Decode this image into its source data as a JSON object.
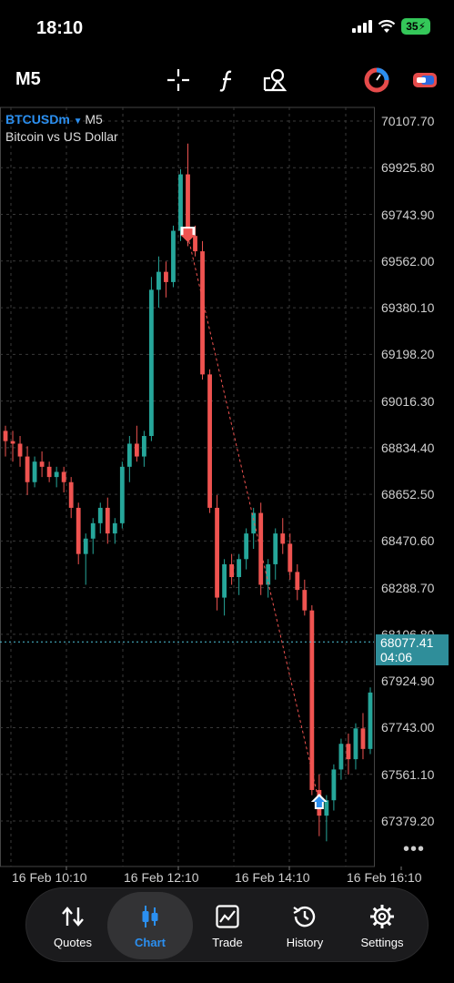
{
  "status_bar": {
    "time": "18:10",
    "battery": "35",
    "icons": [
      "signal-icon",
      "wifi-icon",
      "battery-charging-icon"
    ]
  },
  "toolbar": {
    "timeframe": "M5",
    "icons": [
      "crosshair-icon",
      "indicators-icon",
      "objects-icon",
      "chart-type-icon",
      "broker-icon"
    ]
  },
  "chart_info": {
    "symbol": "BTCUSDm",
    "timeframe": "M5",
    "description": "Bitcoin vs US Dollar",
    "current_price": "68077.41",
    "countdown": "04:06"
  },
  "chart_data": {
    "type": "candlestick",
    "symbol": "BTCUSDm",
    "ylim": [
      67200,
      70200
    ],
    "y_ticks": [
      "70107.70",
      "69925.80",
      "69743.90",
      "69562.00",
      "69380.10",
      "69198.20",
      "69016.30",
      "68834.40",
      "68652.50",
      "68470.60",
      "68288.70",
      "68106.80",
      "67924.90",
      "67743.00",
      "67561.10",
      "67379.20"
    ],
    "x_ticks": [
      "16 Feb 10:10",
      "16 Feb 12:10",
      "16 Feb 14:10",
      "16 Feb 16:10"
    ],
    "current_price": 68077.41,
    "colors": {
      "up": "#26a69a",
      "down": "#ef5350",
      "grid": "#3a3a3a",
      "price_line": "#4fc3d7"
    },
    "trades": [
      {
        "side": "sell",
        "price": 69660
      },
      {
        "side": "buy",
        "price": 67450
      }
    ],
    "candles": [
      [
        68900,
        68920,
        68800,
        68860
      ],
      [
        68860,
        68900,
        68780,
        68850
      ],
      [
        68850,
        68880,
        68760,
        68800
      ],
      [
        68800,
        68840,
        68650,
        68700
      ],
      [
        68700,
        68800,
        68680,
        68780
      ],
      [
        68780,
        68820,
        68720,
        68760
      ],
      [
        68760,
        68780,
        68700,
        68720
      ],
      [
        68720,
        68760,
        68680,
        68740
      ],
      [
        68740,
        68760,
        68660,
        68700
      ],
      [
        68700,
        68720,
        68560,
        68600
      ],
      [
        68600,
        68620,
        68380,
        68420
      ],
      [
        68420,
        68500,
        68300,
        68480
      ],
      [
        68480,
        68560,
        68420,
        68540
      ],
      [
        68540,
        68620,
        68500,
        68600
      ],
      [
        68600,
        68640,
        68460,
        68500
      ],
      [
        68500,
        68560,
        68460,
        68540
      ],
      [
        68540,
        68780,
        68520,
        68760
      ],
      [
        68760,
        68880,
        68700,
        68850
      ],
      [
        68850,
        68920,
        68780,
        68800
      ],
      [
        68800,
        68900,
        68760,
        68880
      ],
      [
        68880,
        69500,
        68860,
        69450
      ],
      [
        69450,
        69580,
        69380,
        69520
      ],
      [
        69520,
        69560,
        69420,
        69480
      ],
      [
        69480,
        69700,
        69460,
        69680
      ],
      [
        69680,
        69920,
        69640,
        69900
      ],
      [
        69900,
        70020,
        69620,
        69660
      ],
      [
        69660,
        69700,
        69580,
        69600
      ],
      [
        69600,
        69640,
        69100,
        69120
      ],
      [
        69120,
        69140,
        68580,
        68600
      ],
      [
        68600,
        68650,
        68200,
        68250
      ],
      [
        68250,
        68400,
        68180,
        68380
      ],
      [
        68380,
        68420,
        68300,
        68330
      ],
      [
        68330,
        68420,
        68260,
        68400
      ],
      [
        68400,
        68520,
        68360,
        68500
      ],
      [
        68500,
        68600,
        68440,
        68580
      ],
      [
        68580,
        68620,
        68260,
        68300
      ],
      [
        68300,
        68400,
        68250,
        68380
      ],
      [
        68380,
        68520,
        68320,
        68500
      ],
      [
        68500,
        68560,
        68420,
        68460
      ],
      [
        68460,
        68500,
        68320,
        68350
      ],
      [
        68350,
        68380,
        68240,
        68280
      ],
      [
        68280,
        68320,
        68180,
        68200
      ],
      [
        68200,
        68220,
        67480,
        67500
      ],
      [
        67500,
        67560,
        67320,
        67400
      ],
      [
        67400,
        67480,
        67300,
        67460
      ],
      [
        67460,
        67600,
        67420,
        67580
      ],
      [
        67580,
        67700,
        67540,
        67680
      ],
      [
        67680,
        67720,
        67560,
        67620
      ],
      [
        67620,
        67760,
        67580,
        67740
      ],
      [
        67740,
        67800,
        67620,
        67660
      ],
      [
        67660,
        67900,
        67640,
        67880
      ]
    ]
  },
  "bottom_nav": [
    {
      "label": "Quotes",
      "icon": "quotes-arrows-icon",
      "active": false
    },
    {
      "label": "Chart",
      "icon": "candles-icon",
      "active": true
    },
    {
      "label": "Trade",
      "icon": "trade-chart-icon",
      "active": false
    },
    {
      "label": "History",
      "icon": "history-clock-icon",
      "active": false
    },
    {
      "label": "Settings",
      "icon": "gear-icon",
      "active": false
    }
  ]
}
